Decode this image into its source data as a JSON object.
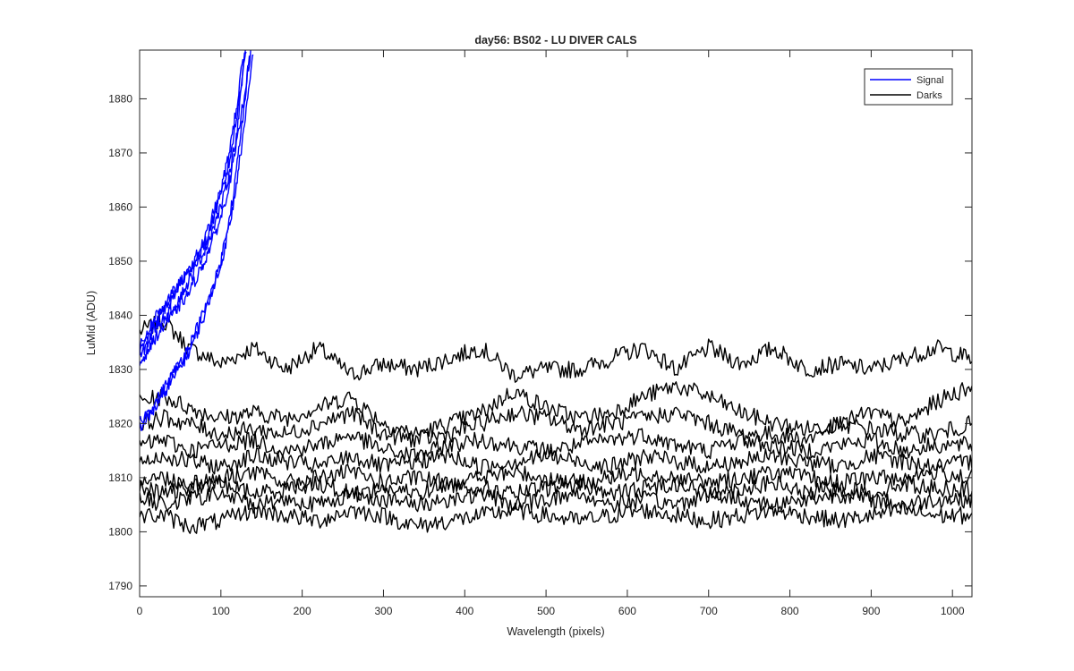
{
  "chart_data": {
    "type": "line",
    "title": "day56: BS02 - LU DIVER CALS",
    "xlabel": "Wavelength (pixels)",
    "ylabel": "LuMid (ADU)",
    "xlim": [
      0,
      1024
    ],
    "ylim": [
      1788,
      1889
    ],
    "x_ticks": [
      0,
      100,
      200,
      300,
      400,
      500,
      600,
      700,
      800,
      900,
      1000
    ],
    "y_ticks": [
      1790,
      1800,
      1810,
      1820,
      1830,
      1840,
      1850,
      1860,
      1870,
      1880
    ],
    "grid": false,
    "legend_position": "top-right",
    "legend": [
      {
        "label": "Signal",
        "color": "#0000ff"
      },
      {
        "label": "Darks",
        "color": "#000000"
      }
    ],
    "series": [
      {
        "group": "Signal",
        "color": "#0000ff",
        "x": [
          0,
          20,
          40,
          60,
          80,
          100,
          110,
          120,
          130
        ],
        "values": [
          1832,
          1838,
          1841,
          1846,
          1852,
          1860,
          1866,
          1874,
          1889
        ]
      },
      {
        "group": "Signal",
        "color": "#0000ff",
        "x": [
          0,
          20,
          40,
          60,
          80,
          100,
          110,
          120,
          130,
          137
        ],
        "values": [
          1831,
          1836,
          1840,
          1844,
          1850,
          1858,
          1864,
          1872,
          1882,
          1889
        ]
      },
      {
        "group": "Signal",
        "color": "#0000ff",
        "x": [
          0,
          20,
          40,
          60,
          80,
          100,
          110,
          120,
          130
        ],
        "values": [
          1833,
          1839,
          1843,
          1848,
          1853,
          1862,
          1868,
          1877,
          1889
        ]
      },
      {
        "group": "Signal",
        "color": "#0000ff",
        "x": [
          0,
          20,
          40,
          60,
          80,
          100,
          110,
          120,
          125,
          131
        ],
        "values": [
          1834,
          1840,
          1844,
          1848,
          1854,
          1863,
          1870,
          1879,
          1885,
          1889
        ]
      },
      {
        "group": "Signal",
        "color": "#0000ff",
        "x": [
          0,
          20,
          40,
          60,
          80,
          100,
          115,
          130,
          140
        ],
        "values": [
          1820,
          1824,
          1829,
          1834,
          1841,
          1849,
          1860,
          1876,
          1889
        ]
      },
      {
        "group": "Signal",
        "color": "#0000ff",
        "x": [
          0,
          20,
          40,
          60,
          80,
          100,
          115,
          130,
          135
        ],
        "values": [
          1819,
          1823,
          1828,
          1833,
          1840,
          1850,
          1862,
          1880,
          1889
        ]
      },
      {
        "group": "Darks",
        "color": "#000000",
        "x": [
          0,
          30,
          60,
          100,
          140,
          180,
          220,
          260,
          300,
          340,
          380,
          420,
          460,
          500,
          540,
          580,
          620,
          660,
          700,
          740,
          780,
          820,
          860,
          900,
          940,
          980,
          1024
        ],
        "values": [
          1837,
          1839,
          1834,
          1831,
          1834,
          1830,
          1834,
          1829,
          1831,
          1830,
          1832,
          1834,
          1829,
          1830,
          1830,
          1832,
          1834,
          1830,
          1834,
          1831,
          1834,
          1830,
          1831,
          1830,
          1832,
          1834,
          1832
        ]
      },
      {
        "group": "Darks",
        "color": "#000000",
        "x": [
          0,
          30,
          60,
          100,
          140,
          180,
          220,
          260,
          300,
          340,
          380,
          420,
          460,
          500,
          540,
          580,
          620,
          660,
          700,
          740,
          780,
          820,
          860,
          900,
          940,
          980,
          1024
        ],
        "values": [
          1824,
          1825,
          1823,
          1821,
          1822,
          1821,
          1823,
          1825,
          1820,
          1818,
          1820,
          1822,
          1826,
          1823,
          1821,
          1822,
          1825,
          1827,
          1825,
          1822,
          1820,
          1819,
          1820,
          1822,
          1820,
          1824,
          1827
        ]
      },
      {
        "group": "Darks",
        "color": "#000000",
        "x": [
          0,
          30,
          60,
          100,
          140,
          180,
          220,
          260,
          300,
          340,
          380,
          420,
          460,
          500,
          540,
          580,
          620,
          660,
          700,
          740,
          780,
          820,
          860,
          900,
          940,
          980,
          1024
        ],
        "values": [
          1820,
          1821,
          1820,
          1818,
          1819,
          1818,
          1820,
          1822,
          1818,
          1817,
          1818,
          1820,
          1822,
          1821,
          1819,
          1820,
          1821,
          1822,
          1820,
          1818,
          1818,
          1817,
          1820,
          1819,
          1818,
          1818,
          1820
        ]
      },
      {
        "group": "Darks",
        "color": "#000000",
        "x": [
          0,
          30,
          60,
          100,
          140,
          180,
          220,
          260,
          300,
          340,
          380,
          420,
          460,
          500,
          540,
          580,
          620,
          660,
          700,
          740,
          780,
          820,
          860,
          900,
          940,
          980,
          1024
        ],
        "values": [
          1816,
          1817,
          1815,
          1816,
          1817,
          1815,
          1816,
          1818,
          1815,
          1814,
          1816,
          1817,
          1816,
          1815,
          1816,
          1817,
          1818,
          1816,
          1815,
          1817,
          1816,
          1815,
          1816,
          1817,
          1815,
          1816,
          1816
        ]
      },
      {
        "group": "Darks",
        "color": "#000000",
        "x": [
          0,
          30,
          60,
          100,
          140,
          180,
          220,
          260,
          300,
          340,
          380,
          420,
          460,
          500,
          540,
          580,
          620,
          660,
          700,
          740,
          780,
          820,
          860,
          900,
          940,
          980,
          1024
        ],
        "values": [
          1813,
          1814,
          1813,
          1812,
          1814,
          1813,
          1812,
          1814,
          1812,
          1813,
          1814,
          1812,
          1813,
          1814,
          1813,
          1812,
          1814,
          1813,
          1812,
          1813,
          1814,
          1813,
          1812,
          1814,
          1813,
          1812,
          1813
        ]
      },
      {
        "group": "Darks",
        "color": "#000000",
        "x": [
          0,
          30,
          60,
          100,
          140,
          180,
          220,
          260,
          300,
          340,
          380,
          420,
          460,
          500,
          540,
          580,
          620,
          660,
          700,
          740,
          780,
          820,
          860,
          900,
          940,
          980,
          1024
        ],
        "values": [
          1810,
          1810,
          1809,
          1810,
          1811,
          1809,
          1810,
          1811,
          1809,
          1810,
          1809,
          1810,
          1811,
          1810,
          1809,
          1810,
          1811,
          1810,
          1809,
          1810,
          1811,
          1810,
          1809,
          1810,
          1810,
          1811,
          1810
        ]
      },
      {
        "group": "Darks",
        "color": "#000000",
        "x": [
          0,
          30,
          60,
          100,
          140,
          180,
          220,
          260,
          300,
          340,
          380,
          420,
          460,
          500,
          540,
          580,
          620,
          660,
          700,
          740,
          780,
          820,
          860,
          900,
          940,
          980,
          1024
        ],
        "values": [
          1808,
          1807,
          1808,
          1809,
          1807,
          1808,
          1809,
          1807,
          1808,
          1807,
          1809,
          1808,
          1807,
          1808,
          1809,
          1807,
          1808,
          1809,
          1807,
          1808,
          1809,
          1807,
          1808,
          1807,
          1809,
          1808,
          1808
        ]
      },
      {
        "group": "Darks",
        "color": "#000000",
        "x": [
          0,
          30,
          60,
          100,
          140,
          180,
          220,
          260,
          300,
          340,
          380,
          420,
          460,
          500,
          540,
          580,
          620,
          660,
          700,
          740,
          780,
          820,
          860,
          900,
          940,
          980,
          1024
        ],
        "values": [
          1806,
          1805,
          1806,
          1807,
          1805,
          1806,
          1805,
          1807,
          1806,
          1805,
          1806,
          1807,
          1805,
          1806,
          1807,
          1805,
          1806,
          1805,
          1807,
          1806,
          1805,
          1806,
          1807,
          1806,
          1805,
          1806,
          1806
        ]
      },
      {
        "group": "Darks",
        "color": "#000000",
        "x": [
          0,
          30,
          60,
          100,
          140,
          180,
          220,
          260,
          300,
          340,
          380,
          420,
          460,
          500,
          540,
          580,
          620,
          660,
          700,
          740,
          780,
          820,
          860,
          900,
          940,
          980,
          1024
        ],
        "values": [
          1803,
          1803,
          1801,
          1802,
          1804,
          1803,
          1802,
          1804,
          1803,
          1801,
          1802,
          1803,
          1804,
          1803,
          1802,
          1803,
          1804,
          1803,
          1802,
          1803,
          1804,
          1803,
          1802,
          1803,
          1804,
          1803,
          1803
        ]
      }
    ]
  }
}
